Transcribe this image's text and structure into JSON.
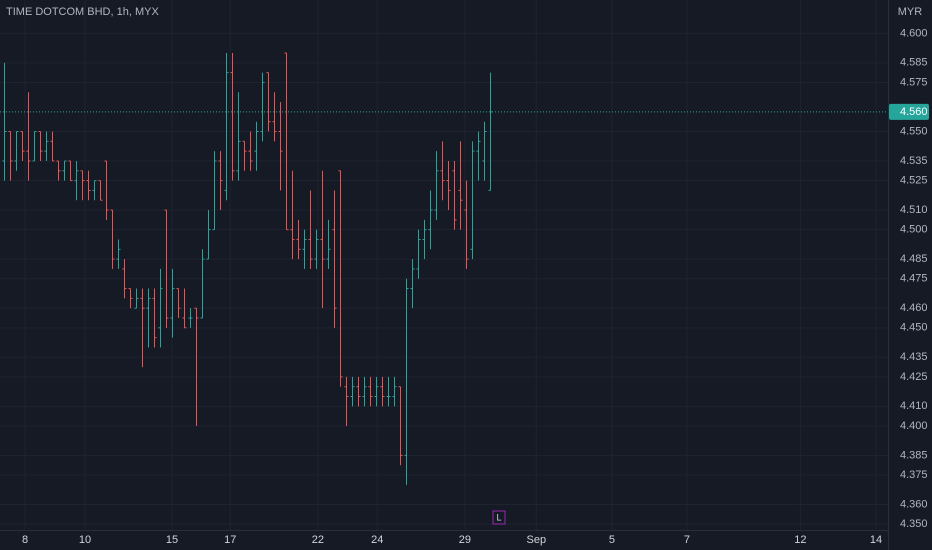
{
  "chart_data": {
    "type": "ohlc",
    "title": "TIME DOTCOM BHD, 1h, MYX",
    "currency": "MYR",
    "up_color": "#26a69a",
    "down_color": "#ef5350",
    "grid": true,
    "open": [
      4.535,
      4.55,
      4.535,
      4.55,
      4.54,
      4.535,
      4.55,
      4.54,
      4.545,
      4.535,
      4.53,
      4.535,
      4.525,
      4.53,
      4.525,
      4.52,
      4.525,
      4.535,
      4.51,
      4.485,
      4.48,
      4.47,
      4.46,
      4.465,
      4.46,
      4.465,
      4.45,
      4.51,
      4.455,
      4.47,
      4.455,
      4.455,
      4.46,
      4.455,
      4.485,
      4.5,
      4.535,
      4.52,
      4.58,
      4.53,
      4.545,
      4.54,
      4.54,
      4.55,
      4.58,
      4.555,
      4.55,
      4.59,
      4.5,
      4.495,
      4.49,
      4.495,
      4.485,
      4.495,
      4.485,
      4.5,
      4.53,
      4.42,
      4.415,
      4.42,
      4.415,
      4.42,
      4.415,
      4.42,
      4.415,
      4.415,
      4.42,
      4.385,
      4.47,
      4.48,
      4.495,
      4.5,
      4.51,
      4.53,
      4.525,
      4.53,
      4.52,
      4.51,
      4.49,
      4.54,
      4.535,
      4.52
    ],
    "high": [
      4.585,
      4.55,
      4.55,
      4.55,
      4.57,
      4.55,
      4.55,
      4.55,
      4.55,
      4.535,
      4.535,
      4.535,
      4.535,
      4.53,
      4.53,
      4.525,
      4.525,
      4.535,
      4.51,
      4.495,
      4.485,
      4.47,
      4.47,
      4.47,
      4.47,
      4.47,
      4.48,
      4.51,
      4.48,
      4.47,
      4.47,
      4.46,
      4.46,
      4.49,
      4.51,
      4.54,
      4.54,
      4.59,
      4.59,
      4.57,
      4.545,
      4.55,
      4.555,
      4.58,
      4.58,
      4.57,
      4.565,
      4.59,
      4.53,
      4.505,
      4.5,
      4.52,
      4.5,
      4.53,
      4.505,
      4.52,
      4.53,
      4.425,
      4.425,
      4.425,
      4.425,
      4.425,
      4.425,
      4.425,
      4.425,
      4.425,
      4.42,
      4.475,
      4.485,
      4.5,
      4.505,
      4.52,
      4.54,
      4.545,
      4.535,
      4.535,
      4.545,
      4.525,
      4.545,
      4.55,
      4.555,
      4.58
    ],
    "low": [
      4.525,
      4.525,
      4.53,
      4.535,
      4.525,
      4.535,
      4.535,
      4.535,
      4.535,
      4.525,
      4.525,
      4.525,
      4.515,
      4.515,
      4.515,
      4.515,
      4.515,
      4.505,
      4.48,
      4.48,
      4.465,
      4.46,
      4.46,
      4.43,
      4.44,
      4.44,
      4.44,
      4.45,
      4.445,
      4.455,
      4.45,
      4.45,
      4.4,
      4.455,
      4.485,
      4.5,
      4.51,
      4.515,
      4.525,
      4.525,
      4.53,
      4.53,
      4.53,
      4.545,
      4.55,
      4.545,
      4.52,
      4.5,
      4.485,
      4.485,
      4.48,
      4.48,
      4.48,
      4.46,
      4.48,
      4.45,
      4.42,
      4.4,
      4.41,
      4.41,
      4.41,
      4.41,
      4.41,
      4.41,
      4.41,
      4.41,
      4.38,
      4.37,
      4.46,
      4.475,
      4.485,
      4.49,
      4.505,
      4.515,
      4.51,
      4.5,
      4.5,
      4.48,
      4.485,
      4.525,
      4.525,
      4.52
    ],
    "close": [
      4.55,
      4.535,
      4.55,
      4.54,
      4.535,
      4.55,
      4.54,
      4.545,
      4.535,
      4.53,
      4.535,
      4.525,
      4.53,
      4.525,
      4.52,
      4.525,
      4.515,
      4.51,
      4.485,
      4.49,
      4.47,
      4.465,
      4.465,
      4.46,
      4.465,
      4.445,
      4.47,
      4.455,
      4.47,
      4.46,
      4.45,
      4.455,
      4.455,
      4.485,
      4.5,
      4.535,
      4.525,
      4.58,
      4.53,
      4.545,
      4.54,
      4.535,
      4.55,
      4.575,
      4.555,
      4.55,
      4.54,
      4.5,
      4.495,
      4.49,
      4.495,
      4.485,
      4.495,
      4.485,
      4.49,
      4.46,
      4.425,
      4.415,
      4.42,
      4.415,
      4.42,
      4.415,
      4.42,
      4.415,
      4.415,
      4.42,
      4.385,
      4.47,
      4.48,
      4.495,
      4.5,
      4.51,
      4.53,
      4.525,
      4.52,
      4.505,
      4.515,
      4.485,
      4.54,
      4.545,
      4.55,
      4.56
    ],
    "xlim": [
      -0.67,
      147.3
    ],
    "ylim": [
      4.347,
      4.617
    ],
    "xticks": [
      {
        "value": 3.5,
        "label": "8"
      },
      {
        "value": 13.5,
        "label": "10"
      },
      {
        "value": 28,
        "label": "15"
      },
      {
        "value": 37.7,
        "label": "17"
      },
      {
        "value": 52.3,
        "label": "22"
      },
      {
        "value": 62.2,
        "label": "24"
      },
      {
        "value": 76.8,
        "label": "29"
      },
      {
        "value": 88.7,
        "label": "Sep"
      },
      {
        "value": 101.3,
        "label": "5"
      },
      {
        "value": 113.8,
        "label": "7"
      },
      {
        "value": 132.7,
        "label": "12"
      },
      {
        "value": 145.3,
        "label": "14"
      }
    ],
    "yticks": [
      {
        "value": 4.6,
        "label": "4.600"
      },
      {
        "value": 4.585,
        "label": "4.585"
      },
      {
        "value": 4.575,
        "label": "4.575"
      },
      {
        "value": 4.55,
        "label": "4.550"
      },
      {
        "value": 4.535,
        "label": "4.535"
      },
      {
        "value": 4.525,
        "label": "4.525"
      },
      {
        "value": 4.51,
        "label": "4.510"
      },
      {
        "value": 4.5,
        "label": "4.500"
      },
      {
        "value": 4.485,
        "label": "4.485"
      },
      {
        "value": 4.475,
        "label": "4.475"
      },
      {
        "value": 4.46,
        "label": "4.460"
      },
      {
        "value": 4.45,
        "label": "4.450"
      },
      {
        "value": 4.435,
        "label": "4.435"
      },
      {
        "value": 4.425,
        "label": "4.425"
      },
      {
        "value": 4.41,
        "label": "4.410"
      },
      {
        "value": 4.4,
        "label": "4.400"
      },
      {
        "value": 4.385,
        "label": "4.385"
      },
      {
        "value": 4.375,
        "label": "4.375"
      },
      {
        "value": 4.36,
        "label": "4.360"
      },
      {
        "value": 4.35,
        "label": "4.350"
      }
    ],
    "last_price": {
      "value": 4.56,
      "label": "4.560"
    },
    "marker": "L"
  }
}
